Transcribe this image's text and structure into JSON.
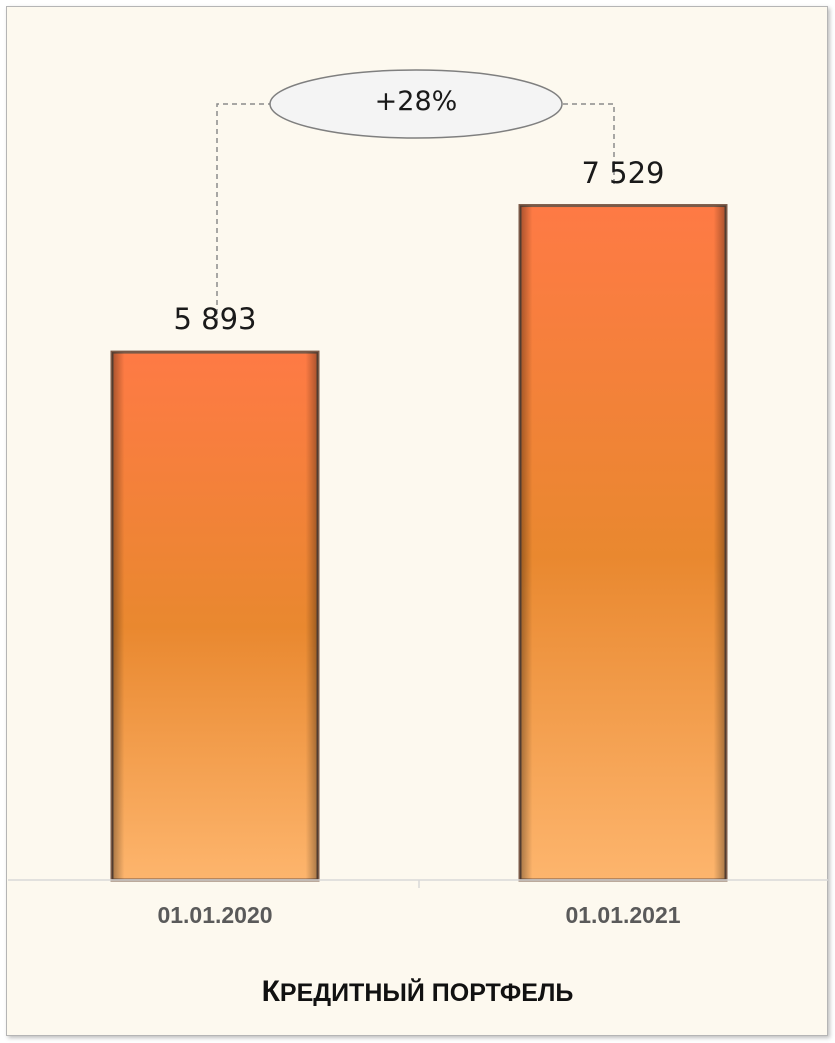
{
  "chart_data": {
    "type": "bar",
    "title": "Кредитный портфель",
    "categories": [
      "01.01.2020",
      "01.01.2021"
    ],
    "values": [
      5893,
      7529
    ],
    "value_labels": [
      "5 893",
      "7 529"
    ],
    "change_label": "+28%",
    "ylim": [
      0,
      8350
    ],
    "grid": false,
    "legend": "none"
  },
  "colors": {
    "background": "#fdf9ef",
    "bar_top": "#fe7a45",
    "bar_mid": "#e9882f",
    "bar_bottom": "#fdb56d",
    "bar_edge": "#7a5a48",
    "axis": "#d9d9d9",
    "connector": "#8c8c8c"
  }
}
